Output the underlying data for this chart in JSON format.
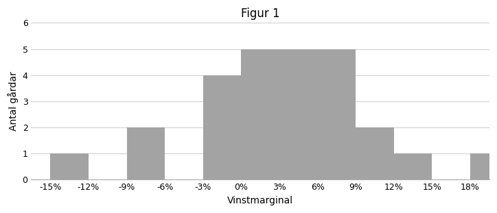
{
  "title": "Figur 1",
  "xlabel": "Vinstmarginal",
  "ylabel": "Antal gårdar",
  "bar_values": [
    1,
    0,
    2,
    0,
    4,
    5,
    5,
    5,
    2,
    1,
    0,
    1
  ],
  "bin_left_edges": [
    -15,
    -12,
    -9,
    -6,
    -3,
    0,
    3,
    6,
    9,
    12,
    15,
    18
  ],
  "bin_width": 3,
  "xlim_left": -16.5,
  "xlim_right": 19.5,
  "tick_positions": [
    -15,
    -12,
    -9,
    -6,
    -3,
    0,
    3,
    6,
    9,
    12,
    15,
    18
  ],
  "tick_labels": [
    "-15%",
    "-12%",
    "-9%",
    "-6%",
    "-3%",
    "0%",
    "3%",
    "6%",
    "9%",
    "12%",
    "15%",
    "18%"
  ],
  "ylim": [
    0,
    6
  ],
  "yticks": [
    0,
    1,
    2,
    3,
    4,
    5,
    6
  ],
  "bar_color": "#a3a3a3",
  "bar_edgecolor": "none",
  "background_color": "#ffffff",
  "grid_color": "#d0d0d0",
  "title_fontsize": 12,
  "axis_label_fontsize": 10,
  "tick_fontsize": 9,
  "figsize": [
    7.24,
    3.11
  ],
  "dpi": 100
}
